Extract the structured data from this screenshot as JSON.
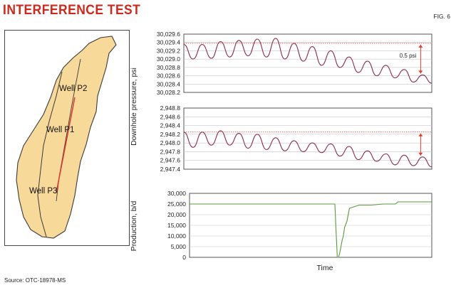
{
  "title": "INTERFERENCE TEST",
  "figure_label": "FIG. 6",
  "source": "Source: OTC-18978-MS",
  "map": {
    "wells": [
      "Well P2",
      "Well P1",
      "Well P3"
    ]
  },
  "shared_xlabel": "Time",
  "shared_pressure_ylabel": "Downhole pressure, psi",
  "colors": {
    "title": "#d0281c",
    "field_fill": "#f7d99a",
    "well_line": "#e03a2a",
    "pressure_line": "#8a2a4a",
    "reference_line": "#e03a2a",
    "production_line": "#5a9a3a",
    "grid": "#c8c8c8"
  },
  "chart_data": [
    {
      "type": "line",
      "title": "",
      "xlabel": "",
      "ylabel": "Downhole pressure, psi",
      "y_ticks": [
        "30,029.6",
        "30,029.4",
        "30,029.2",
        "30,029.0",
        "30,028.8",
        "30,028.6",
        "30,028.4",
        "30,028.2"
      ],
      "ylim": [
        30028.2,
        30029.6
      ],
      "reference_line": 30029.38,
      "annotation": "0.5 psi",
      "series": [
        {
          "values": [
            30029.35,
            30029.0,
            30029.35,
            30029.02,
            30029.42,
            30029.05,
            30029.45,
            30029.08,
            30029.48,
            30029.05,
            30029.5,
            30029.0,
            30029.38,
            30028.95,
            30029.3,
            30028.85,
            30029.2,
            30028.8,
            30029.05,
            30028.68,
            30028.95,
            30028.6,
            30028.85,
            30028.55,
            30028.75,
            30028.45,
            30028.62,
            30028.42
          ]
        }
      ]
    },
    {
      "type": "line",
      "title": "",
      "xlabel": "",
      "ylabel": "Downhole pressure, psi",
      "y_ticks": [
        "2,948.8",
        "2,948.6",
        "2,948.4",
        "2,948.2",
        "2,948.0",
        "2,947.8",
        "2,947.6",
        "2,947.4"
      ],
      "ylim": [
        2947.4,
        2948.8
      ],
      "reference_line": 2948.25,
      "annotation": "",
      "series": [
        {
          "values": [
            2948.25,
            2947.9,
            2948.25,
            2947.95,
            2948.28,
            2947.95,
            2948.22,
            2947.88,
            2948.2,
            2947.85,
            2948.12,
            2947.82,
            2948.05,
            2947.8,
            2948.0,
            2947.78,
            2947.98,
            2947.7,
            2947.92,
            2947.62,
            2947.82,
            2947.58,
            2947.75,
            2947.5,
            2947.72,
            2947.48,
            2947.68,
            2947.45
          ]
        }
      ]
    },
    {
      "type": "line",
      "title": "",
      "xlabel": "Time",
      "ylabel": "Production, b/d",
      "y_ticks": [
        "30,000",
        "25,000",
        "20,000",
        "15,000",
        "10,000",
        "5,000",
        "0"
      ],
      "ylim": [
        0,
        30000
      ],
      "series": [
        {
          "x": [
            0,
            0.6,
            0.605,
            0.61,
            0.615,
            0.62,
            0.625,
            0.63,
            0.635,
            0.64,
            0.65,
            0.655,
            0.66,
            0.7,
            0.75,
            0.8,
            0.85,
            0.86,
            0.9,
            0.95,
            1.0
          ],
          "values": [
            25000,
            25000,
            12000,
            0,
            0,
            2000,
            5000,
            8000,
            10000,
            14000,
            17000,
            20000,
            23000,
            24500,
            24500,
            25000,
            25000,
            26000,
            26000,
            26000,
            26000
          ]
        }
      ]
    }
  ]
}
